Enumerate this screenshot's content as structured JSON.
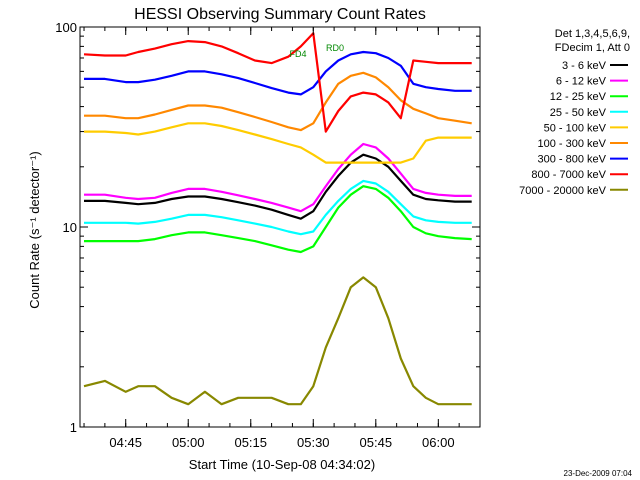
{
  "chart_data": {
    "type": "line",
    "title": "HESSI Observing Summary Count Rates",
    "xlabel": "Start Time (10-Sep-08 04:34:02)",
    "ylabel": "Count Rate (s⁻¹ detector⁻¹)",
    "y_scale": "log",
    "ylim": [
      1,
      100
    ],
    "xlim": [
      "04:34:02",
      "06:10:00"
    ],
    "x_ticks": [
      "04:45",
      "05:00",
      "05:15",
      "05:30",
      "05:45",
      "06:00"
    ],
    "y_ticks": [
      "1",
      "10",
      "100"
    ],
    "footer": "23-Dec-2009 07:04",
    "legend_header": [
      "Det 1,3,4,5,6,9,",
      "FDecim 1, Att 0"
    ],
    "legend_position": "right",
    "x": [
      "04:35",
      "04:40",
      "04:45",
      "04:48",
      "04:52",
      "04:56",
      "05:00",
      "05:04",
      "05:08",
      "05:12",
      "05:16",
      "05:20",
      "05:24",
      "05:27",
      "05:30",
      "05:33",
      "05:36",
      "05:39",
      "05:42",
      "05:45",
      "05:48",
      "05:51",
      "05:54",
      "05:57",
      "06:00",
      "06:04",
      "06:08"
    ],
    "series": [
      {
        "name": "3 - 6 keV",
        "color": "#000000",
        "values": [
          13.5,
          13.5,
          13.2,
          13,
          13.2,
          13.8,
          14.2,
          14.2,
          13.8,
          13.3,
          12.8,
          12.2,
          11.5,
          11,
          12,
          15,
          18,
          21,
          23,
          22,
          20,
          17,
          14.5,
          13.8,
          13.6,
          13.4,
          13.4
        ]
      },
      {
        "name": "6 - 12 keV",
        "color": "#ff00ff",
        "values": [
          14.5,
          14.5,
          14,
          13.8,
          14,
          14.8,
          15.5,
          15.5,
          15,
          14.4,
          13.8,
          13.2,
          12.5,
          12,
          13,
          16,
          19.5,
          23,
          26,
          25,
          22,
          18.5,
          15.5,
          14.8,
          14.5,
          14.3,
          14.3
        ]
      },
      {
        "name": "12 - 25 keV",
        "color": "#00ff00",
        "values": [
          8.5,
          8.5,
          8.5,
          8.5,
          8.7,
          9.1,
          9.4,
          9.4,
          9.1,
          8.8,
          8.5,
          8.1,
          7.7,
          7.5,
          8,
          10,
          12.5,
          14.5,
          16,
          15.5,
          14,
          12,
          10,
          9.3,
          9,
          8.8,
          8.7
        ]
      },
      {
        "name": "25 - 50 keV",
        "color": "#00ffff",
        "values": [
          10.5,
          10.5,
          10.5,
          10.4,
          10.6,
          11,
          11.5,
          11.5,
          11.2,
          10.8,
          10.4,
          10,
          9.5,
          9.2,
          9.5,
          11.5,
          13.5,
          15.5,
          17,
          16.5,
          15,
          13,
          11.3,
          10.8,
          10.6,
          10.5,
          10.5
        ]
      },
      {
        "name": "50 - 100 keV",
        "color": "#ffcc00",
        "values": [
          30,
          30,
          29.5,
          29,
          30,
          31.5,
          33,
          33,
          32,
          30.5,
          29,
          27.5,
          26,
          25,
          23,
          21,
          21,
          21,
          21,
          21,
          21,
          21,
          22,
          27,
          28,
          28,
          28
        ]
      },
      {
        "name": "100 - 300 keV",
        "color": "#ff8800",
        "values": [
          36,
          36,
          35,
          35,
          36.5,
          38.5,
          40.5,
          40.5,
          39.5,
          37.5,
          35.5,
          33.5,
          31.5,
          30.5,
          33,
          42,
          52,
          57,
          59,
          56,
          50,
          43,
          39,
          37,
          35,
          34,
          33
        ]
      },
      {
        "name": "300 - 800 keV",
        "color": "#0000ff",
        "values": [
          55,
          55,
          53,
          53,
          54.5,
          57,
          60,
          60,
          58,
          55.5,
          52.5,
          49.5,
          47,
          46,
          50,
          60,
          68,
          73,
          75,
          74,
          70,
          64,
          52,
          50,
          49,
          48,
          48
        ]
      },
      {
        "name": "800 - 7000 keV",
        "color": "#ff0000",
        "values": [
          73,
          72,
          72,
          75,
          78,
          82,
          85,
          84,
          80,
          74,
          68,
          66,
          71,
          80,
          93,
          30,
          38,
          45,
          47,
          46,
          42,
          35,
          68,
          67,
          66,
          66,
          66
        ]
      },
      {
        "name": "7000 - 20000 keV",
        "color": "#888800",
        "values": [
          1.6,
          1.7,
          1.5,
          1.6,
          1.6,
          1.4,
          1.3,
          1.5,
          1.3,
          1.4,
          1.4,
          1.4,
          1.3,
          1.3,
          1.6,
          2.5,
          3.5,
          5,
          5.6,
          5,
          3.5,
          2.2,
          1.6,
          1.4,
          1.3,
          1.3,
          1.3
        ]
      }
    ],
    "annotations": [
      {
        "text": "RD0",
        "color": "#008800"
      },
      {
        "text": "FD4",
        "color": "#008800"
      }
    ]
  }
}
